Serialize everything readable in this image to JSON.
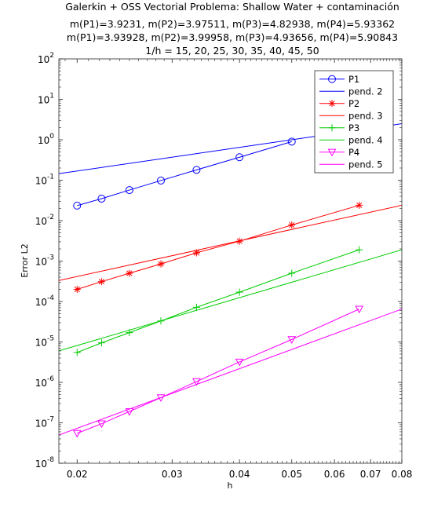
{
  "chart_data": {
    "type": "line",
    "title_lines": [
      "Galerkin + OSS  Vectorial        Problema: Shallow Water + contaminación",
      "m(P1)=3.9231,    m(P2)=3.97511,    m(P3)=4.82938,    m(P4)=5.93362",
      "m(P1)=3.93928,    m(P2)=3.99958,    m(P3)=4.93656,    m(P4)=5.90843",
      "1/h = 15, 20, 25, 30, 35, 40, 45, 50"
    ],
    "xlabel": "h",
    "ylabel": "Error L2",
    "x_scale": "log",
    "y_scale": "log",
    "xlim": [
      0.0185,
      0.08
    ],
    "ylim": [
      1e-08,
      100
    ],
    "x_ticks": [
      0.02,
      0.03,
      0.04,
      0.05,
      0.06,
      0.07,
      0.08
    ],
    "x_tick_labels": [
      "0.02",
      "0.03",
      "0.04",
      "0.05",
      "0.06",
      "0.07",
      "0.08"
    ],
    "y_ticks": [
      {
        "value": 1e-08,
        "base": "10",
        "exp": "-8"
      },
      {
        "value": 1e-07,
        "base": "10",
        "exp": "-7"
      },
      {
        "value": 1e-06,
        "base": "10",
        "exp": "-6"
      },
      {
        "value": 1e-05,
        "base": "10",
        "exp": "-5"
      },
      {
        "value": 0.0001,
        "base": "10",
        "exp": "-4"
      },
      {
        "value": 0.001,
        "base": "10",
        "exp": "-3"
      },
      {
        "value": 0.01,
        "base": "10",
        "exp": "-2"
      },
      {
        "value": 0.1,
        "base": "10",
        "exp": "-1"
      },
      {
        "value": 1,
        "base": "10",
        "exp": "0"
      },
      {
        "value": 10,
        "base": "10",
        "exp": "1"
      },
      {
        "value": 100,
        "base": "10",
        "exp": "2"
      }
    ],
    "legend_position": "top-right",
    "grid": false,
    "series": [
      {
        "name": "P1",
        "kind": "data",
        "color": "#0000ff",
        "marker": "circle",
        "x": [
          0.02,
          0.0222,
          0.025,
          0.0286,
          0.0333,
          0.04,
          0.05
        ],
        "y": [
          0.0235,
          0.035,
          0.057,
          0.098,
          0.18,
          0.37,
          0.9
        ]
      },
      {
        "name": "pend. 2",
        "kind": "slope",
        "color": "#0000ff",
        "x": [
          0.0185,
          0.08
        ],
        "y": [
          0.145,
          2.5
        ]
      },
      {
        "name": "P2",
        "kind": "data",
        "color": "#ff0000",
        "marker": "star",
        "x": [
          0.02,
          0.0222,
          0.025,
          0.0286,
          0.0333,
          0.04,
          0.05,
          0.0667
        ],
        "y": [
          0.0002,
          0.00031,
          0.0005,
          0.00085,
          0.0016,
          0.0031,
          0.0078,
          0.024
        ]
      },
      {
        "name": "pend. 3",
        "kind": "slope",
        "color": "#ff0000",
        "x": [
          0.0185,
          0.08
        ],
        "y": [
          0.00033,
          0.024
        ]
      },
      {
        "name": "P3",
        "kind": "data",
        "color": "#00cc00",
        "marker": "plus",
        "x": [
          0.02,
          0.0222,
          0.025,
          0.0286,
          0.0333,
          0.04,
          0.05,
          0.0667
        ],
        "y": [
          5.5e-06,
          9.5e-06,
          1.7e-05,
          3.3e-05,
          7.2e-05,
          0.00017,
          0.0005,
          0.0019
        ]
      },
      {
        "name": "pend. 4",
        "kind": "slope",
        "color": "#00cc00",
        "x": [
          0.0185,
          0.08
        ],
        "y": [
          6e-06,
          0.0019
        ]
      },
      {
        "name": "P4",
        "kind": "data",
        "color": "#ff00ff",
        "marker": "triangle-down",
        "x": [
          0.02,
          0.0222,
          0.025,
          0.0286,
          0.0333,
          0.04,
          0.05,
          0.0667
        ],
        "y": [
          5.5e-08,
          9.5e-08,
          1.9e-07,
          4.2e-07,
          1.05e-06,
          3.2e-06,
          1.15e-05,
          6.5e-05
        ]
      },
      {
        "name": "pend. 5",
        "kind": "slope",
        "color": "#ff00ff",
        "x": [
          0.0185,
          0.08
        ],
        "y": [
          5e-08,
          6.5e-05
        ]
      }
    ]
  }
}
